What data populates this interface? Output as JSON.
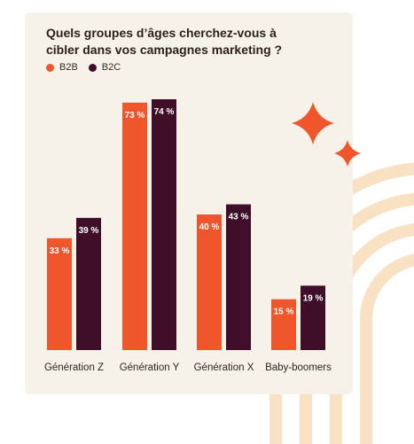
{
  "title": "Quels groupes d’âges cherchez-vous à cibler dans vos campagnes marketing ?",
  "colors": {
    "card": "#f6f2ea",
    "b2b": "#f0562b",
    "b2c": "#3f0f2a",
    "arc": "#f9e1c4",
    "star": "#f0562b",
    "label_light": "#ffffff",
    "axis_text": "#2b1f1a"
  },
  "chart_data": {
    "type": "bar",
    "title": "Quels groupes d’âges cherchez-vous à cibler dans vos campagnes marketing ?",
    "categories": [
      "Génération Z",
      "Génération Y",
      "Génération X",
      "Baby-boomers"
    ],
    "series": [
      {
        "name": "B2B",
        "values": [
          33,
          73,
          40,
          15
        ],
        "labels": [
          "33 %",
          "73 %",
          "40 %",
          "15 %"
        ]
      },
      {
        "name": "B2C",
        "values": [
          39,
          74,
          43,
          19
        ],
        "labels": [
          "39 %",
          "74 %",
          "43 %",
          "19 %"
        ]
      }
    ],
    "xlabel": "",
    "ylabel": "",
    "ylim": [
      0,
      74
    ],
    "grid": false,
    "legend": "top-left"
  }
}
